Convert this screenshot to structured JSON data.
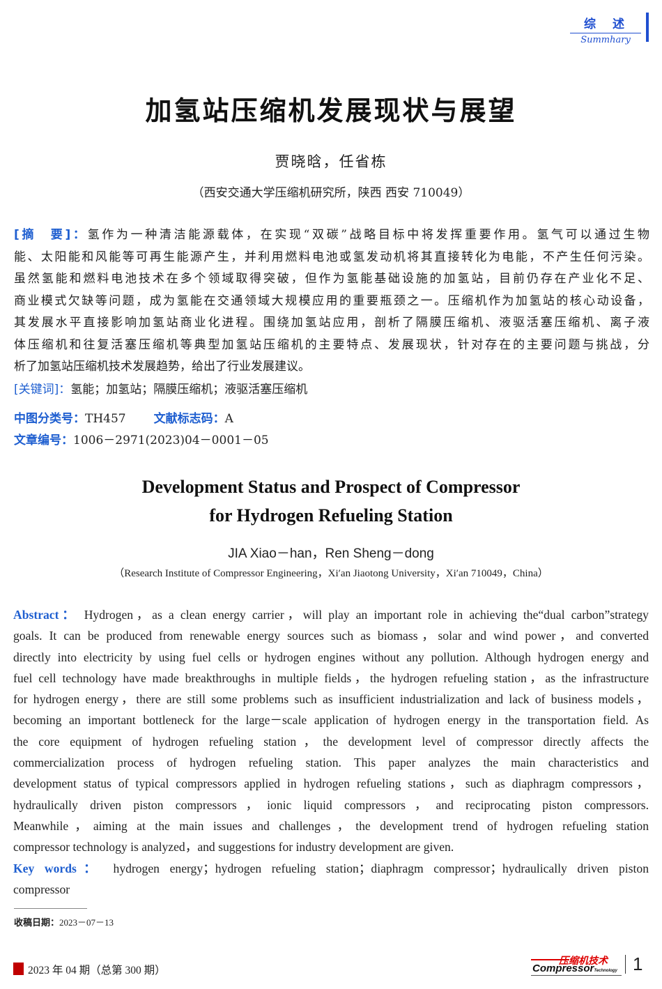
{
  "section": {
    "zh": "综述",
    "en": "Summhary"
  },
  "title": "加氢站压缩机发展现状与展望",
  "authors": "贾晓晗，任省栋",
  "affiliation": "（西安交通大学压缩机研究所，陕西 西安 710049）",
  "zh_abstract": {
    "label": "[摘　要]：",
    "lines": [
      "氢作为一种清洁能源载体，在实现“双碳”战略目标中将发挥重要作用。氢气可以通过生物",
      "能、太阳能和风能等可再生能源产生，并利用燃料电池或氢发动机将其直接转化为电能，不产生任何污染。",
      "虽然氢能和燃料电池技术在多个领域取得突破，但作为氢能基础设施的加氢站，目前仍存在产业化不足、",
      "商业模式欠缺等问题，成为氢能在交通领域大规模应用的重要瓶颈之一。压缩机作为加氢站的核心动设备，",
      "其发展水平直接影响加氢站商业化进程。围绕加氢站应用，剖析了隔膜压缩机、液驱活塞压缩机、离子液",
      "体压缩机和往复活塞压缩机等典型加氢站压缩机的主要特点、发展现状，针对存在的主要问题与挑战，分",
      "析了加氢站压缩机技术发展趋势，给出了行业发展建议。"
    ]
  },
  "zh_keywords": {
    "label": "[关键词]：",
    "value": "氢能；加氢站；隔膜压缩机；液驱活塞压缩机"
  },
  "classification": {
    "label": "中图分类号：",
    "value": "TH457",
    "doc_label": "文献标志码：",
    "doc_value": "A"
  },
  "article_no": {
    "label": "文章编号：",
    "value": "1006－2971(2023)04－0001－05"
  },
  "en_title": [
    "Development Status and Prospect of Compressor",
    "for Hydrogen Refueling Station"
  ],
  "en_authors": "JIA Xiao－han，Ren Sheng－dong",
  "en_affiliation": "（Research Institute of Compressor Engineering，Xi′an Jiaotong University，Xi′an 710049，China）",
  "en_abstract": {
    "label": "Abstract：",
    "lines": [
      "Hydrogen，as a clean energy carrier，will play an important role in achieving the“dual carbon”strategy",
      "goals. It can be produced from renewable energy sources such as biomass，solar and wind power，and converted",
      "directly into electricity by using fuel cells or hydrogen engines without any pollution. Although hydrogen energy and",
      "fuel cell technology have made breakthroughs in multiple fields，the hydrogen refueling station，as the infrastructure",
      "for hydrogen energy，there are still some problems such as insufficient industrialization and lack of business models，",
      "becoming an important bottleneck for the large－scale application of hydrogen energy in the transportation field. As",
      "the core equipment of hydrogen refueling station，the development level of compressor directly affects the",
      "commercialization process of hydrogen refueling station. This paper analyzes the main characteristics and",
      "development status of typical compressors applied in hydrogen refueling stations，such as diaphragm compressors，",
      "hydraulically driven piston compressors，ionic liquid compressors，and reciprocating piston compressors.",
      "Meanwhile，aiming at the main issues and challenges，the development trend of hydrogen refueling station",
      "compressor technology is analyzed，and suggestions for industry development are given."
    ]
  },
  "en_keywords": {
    "label": "Key words：",
    "lines": [
      "hydrogen energy；hydrogen refueling station；diaphragm compressor；hydraulically driven piston",
      "compressor"
    ]
  },
  "received": {
    "label": "收稿日期：",
    "value": "2023－07－13"
  },
  "footer": {
    "issue": "2023 年 04 期（总第 300 期）",
    "logo_zh": "压缩机技术",
    "logo_en": "Compressor",
    "logo_tech": "Technology",
    "page": "1",
    "accent": "#c00000"
  }
}
